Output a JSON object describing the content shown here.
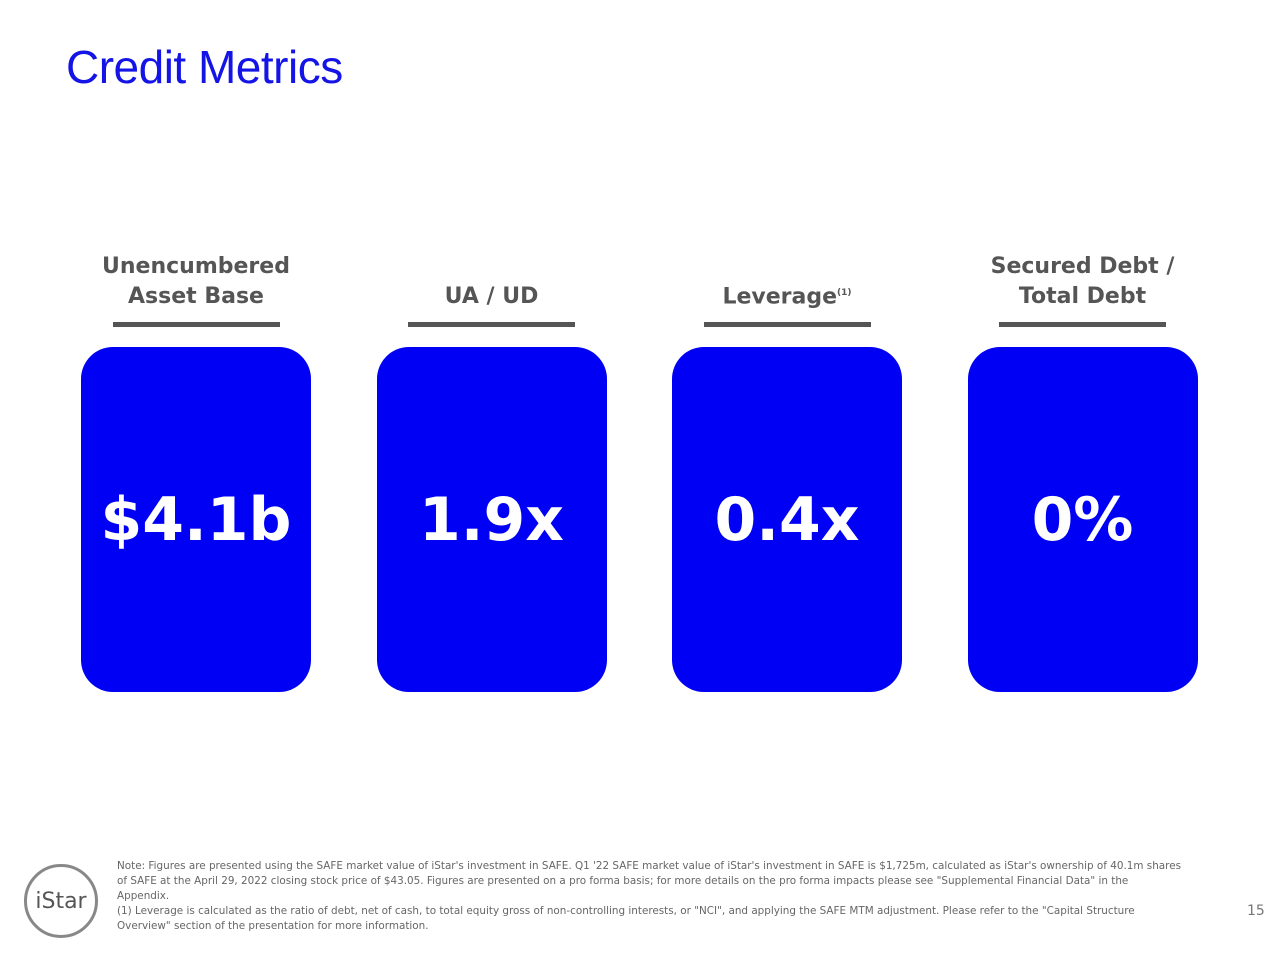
{
  "header": {
    "title": "Credit Metrics"
  },
  "metrics": [
    {
      "label": "Unencumbered Asset Base",
      "value": "$4.1b"
    },
    {
      "label": "UA / UD",
      "value": "1.9x"
    },
    {
      "label": "Leverage",
      "note_ref": "(1)",
      "value": "0.4x"
    },
    {
      "label": "Secured Debt / Total Debt",
      "value": "0%"
    }
  ],
  "footer": {
    "logo": "iStar",
    "note": "Note: Figures are presented using the SAFE market value of iStar's investment in SAFE. Q1 '22 SAFE market value of iStar's investment in SAFE is $1,725m, calculated as iStar's ownership of 40.1m shares of SAFE at the April 29, 2022 closing stock price of $43.05. Figures are presented on a pro forma basis; for more details on the pro forma impacts please see \"Supplemental Financial Data\" in the Appendix.",
    "footnote": "(1) Leverage is calculated as the ratio of debt, net of cash, to total equity gross of non-controlling interests, or \"NCI\", and applying the SAFE MTM adjustment. Please refer to the \"Capital Structure Overview\" section of the presentation for more information.",
    "page_number": "15"
  }
}
